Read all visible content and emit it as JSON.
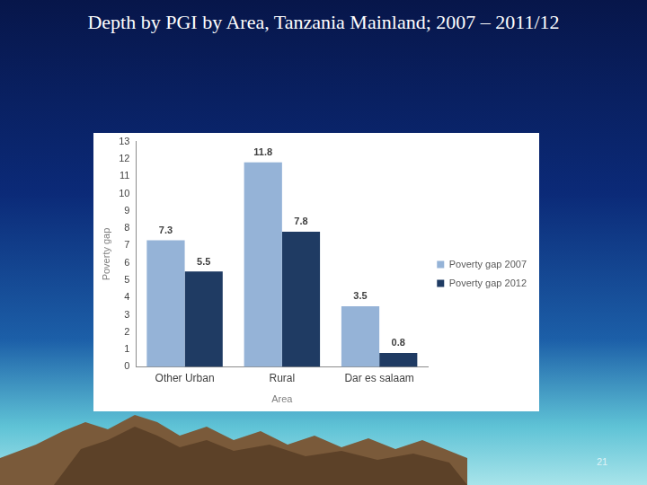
{
  "chart_data": {
    "type": "bar",
    "title": "Depth by PGI by Area, Tanzania Mainland; 2007 – 2011/12",
    "categories": [
      "Other Urban",
      "Rural",
      "Dar es salaam"
    ],
    "series": [
      {
        "name": "Poverty gap 2007",
        "color": "#95b3d7",
        "values": [
          7.3,
          11.8,
          3.5
        ]
      },
      {
        "name": "Poverty gap 2012",
        "color": "#1f3b63",
        "values": [
          5.5,
          7.8,
          0.8
        ]
      }
    ],
    "x_label": "Area",
    "y_label": "Poverty gap",
    "ylim": [
      0,
      13
    ],
    "yticks": [
      0,
      1,
      2,
      3,
      4,
      5,
      6,
      7,
      8,
      9,
      10,
      11,
      12,
      13
    ],
    "grid": false,
    "legend": "right",
    "data_labels": true
  },
  "slide_number": 21
}
